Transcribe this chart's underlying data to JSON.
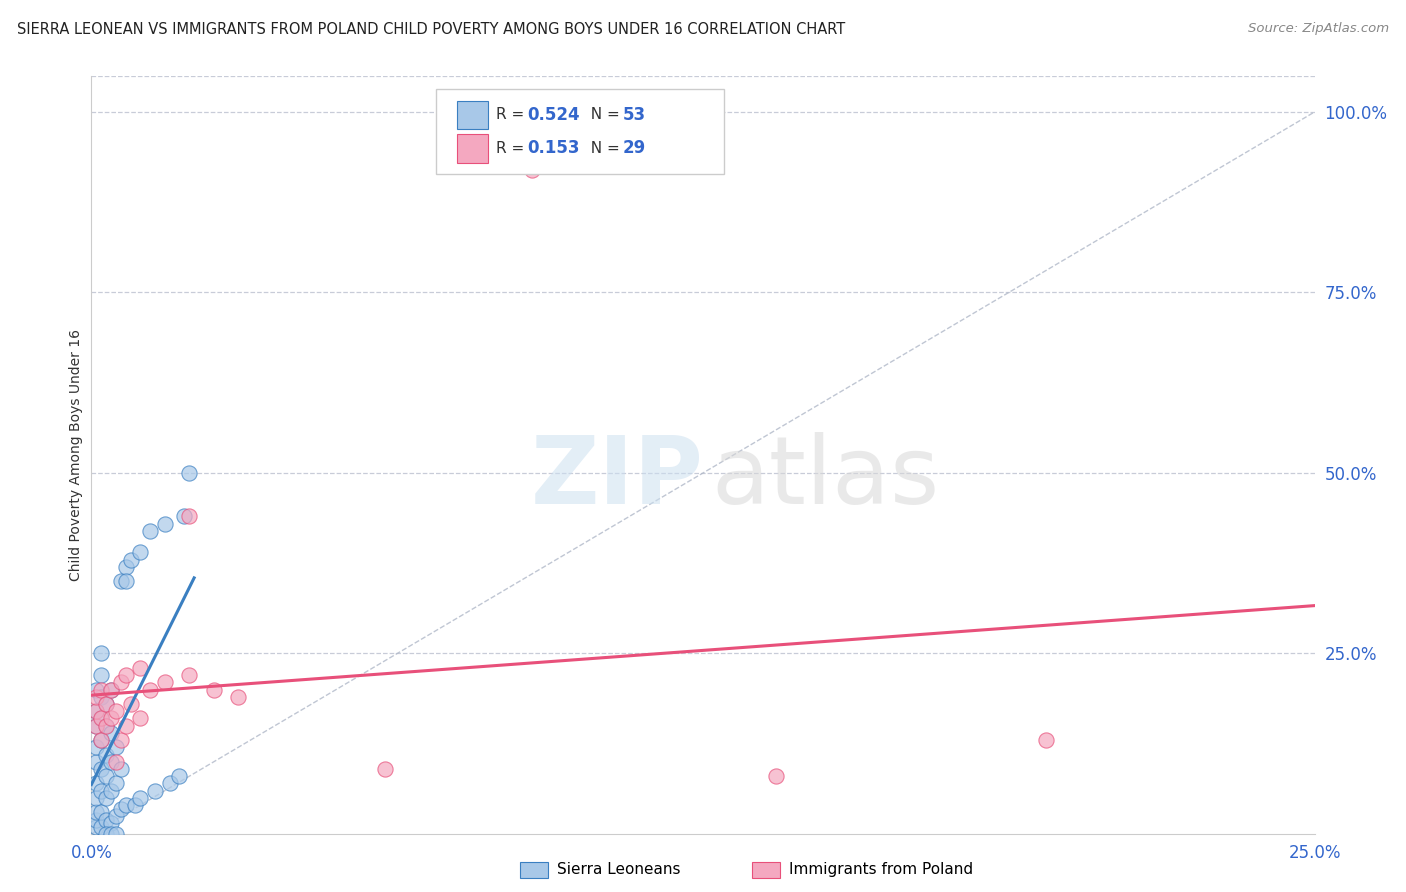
{
  "title": "SIERRA LEONEAN VS IMMIGRANTS FROM POLAND CHILD POVERTY AMONG BOYS UNDER 16 CORRELATION CHART",
  "source": "Source: ZipAtlas.com",
  "ylabel": "Child Poverty Among Boys Under 16",
  "xlim": [
    0.0,
    0.25
  ],
  "ylim": [
    0.0,
    1.05
  ],
  "xticks": [
    0.0,
    0.05,
    0.1,
    0.15,
    0.2,
    0.25
  ],
  "yticks": [
    0.0,
    0.25,
    0.5,
    0.75,
    1.0
  ],
  "xticklabels": [
    "0.0%",
    "",
    "",
    "",
    "",
    "25.0%"
  ],
  "yticklabels": [
    "",
    "25.0%",
    "50.0%",
    "75.0%",
    "100.0%"
  ],
  "sierra_R": 0.524,
  "sierra_N": 53,
  "poland_R": 0.153,
  "poland_N": 29,
  "sierra_color": "#a8c8e8",
  "poland_color": "#f4a8c0",
  "sierra_line_color": "#3a7fc1",
  "poland_line_color": "#e8507a",
  "diagonal_color": "#b0b8c8",
  "legend_label_sierra": "Sierra Leoneans",
  "legend_label_poland": "Immigrants from Poland",
  "sierra_scatter": [
    [
      0.001,
      0.01
    ],
    [
      0.001,
      0.02
    ],
    [
      0.001,
      0.03
    ],
    [
      0.001,
      0.05
    ],
    [
      0.001,
      0.07
    ],
    [
      0.001,
      0.1
    ],
    [
      0.001,
      0.12
    ],
    [
      0.001,
      0.15
    ],
    [
      0.001,
      0.17
    ],
    [
      0.001,
      0.2
    ],
    [
      0.002,
      0.01
    ],
    [
      0.002,
      0.03
    ],
    [
      0.002,
      0.06
    ],
    [
      0.002,
      0.09
    ],
    [
      0.002,
      0.13
    ],
    [
      0.002,
      0.16
    ],
    [
      0.002,
      0.19
    ],
    [
      0.002,
      0.22
    ],
    [
      0.003,
      0.02
    ],
    [
      0.003,
      0.05
    ],
    [
      0.003,
      0.08
    ],
    [
      0.003,
      0.11
    ],
    [
      0.003,
      0.15
    ],
    [
      0.003,
      0.18
    ],
    [
      0.004,
      0.015
    ],
    [
      0.004,
      0.06
    ],
    [
      0.004,
      0.1
    ],
    [
      0.004,
      0.14
    ],
    [
      0.004,
      0.2
    ],
    [
      0.005,
      0.025
    ],
    [
      0.005,
      0.07
    ],
    [
      0.005,
      0.12
    ],
    [
      0.006,
      0.035
    ],
    [
      0.006,
      0.09
    ],
    [
      0.006,
      0.35
    ],
    [
      0.007,
      0.04
    ],
    [
      0.007,
      0.37
    ],
    [
      0.008,
      0.38
    ],
    [
      0.009,
      0.04
    ],
    [
      0.01,
      0.05
    ],
    [
      0.01,
      0.39
    ],
    [
      0.012,
      0.42
    ],
    [
      0.013,
      0.06
    ],
    [
      0.015,
      0.43
    ],
    [
      0.016,
      0.07
    ],
    [
      0.018,
      0.08
    ],
    [
      0.019,
      0.44
    ],
    [
      0.02,
      0.5
    ],
    [
      0.003,
      0.0
    ],
    [
      0.004,
      0.0
    ],
    [
      0.005,
      0.0
    ],
    [
      0.002,
      0.25
    ],
    [
      0.007,
      0.35
    ]
  ],
  "poland_scatter": [
    [
      0.001,
      0.15
    ],
    [
      0.001,
      0.17
    ],
    [
      0.001,
      0.19
    ],
    [
      0.002,
      0.13
    ],
    [
      0.002,
      0.16
    ],
    [
      0.002,
      0.2
    ],
    [
      0.003,
      0.15
    ],
    [
      0.003,
      0.18
    ],
    [
      0.004,
      0.16
    ],
    [
      0.004,
      0.2
    ],
    [
      0.005,
      0.1
    ],
    [
      0.005,
      0.17
    ],
    [
      0.006,
      0.13
    ],
    [
      0.006,
      0.21
    ],
    [
      0.007,
      0.15
    ],
    [
      0.007,
      0.22
    ],
    [
      0.008,
      0.18
    ],
    [
      0.01,
      0.16
    ],
    [
      0.01,
      0.23
    ],
    [
      0.012,
      0.2
    ],
    [
      0.015,
      0.21
    ],
    [
      0.02,
      0.22
    ],
    [
      0.02,
      0.44
    ],
    [
      0.025,
      0.2
    ],
    [
      0.03,
      0.19
    ],
    [
      0.06,
      0.09
    ],
    [
      0.09,
      0.92
    ],
    [
      0.14,
      0.08
    ],
    [
      0.195,
      0.13
    ]
  ]
}
